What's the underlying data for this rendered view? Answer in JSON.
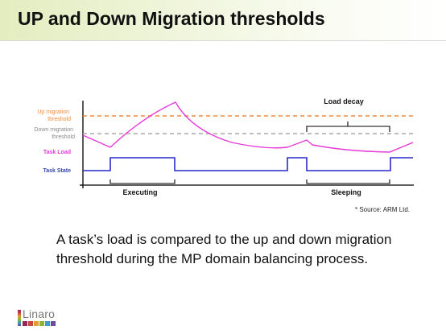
{
  "title": "UP and Down Migration thresholds",
  "diagram": {
    "labels": {
      "up_threshold": [
        "Up migration",
        "threshold"
      ],
      "down_threshold": [
        "Down migration",
        "threshold"
      ],
      "task_load": "Task Load",
      "task_state": "Task State",
      "load_decay": "Load decay",
      "executing": "Executing",
      "sleeping": "Sleeping"
    },
    "colors": {
      "up_threshold": "#f08a3c",
      "down_threshold": "#a8a8a8",
      "task_load": "#e83ad8",
      "task_state": "#2a2acb",
      "label_blue": "#3347a8"
    }
  },
  "source_note": "* Source: ARM Ltd.",
  "body_text": "A task’s load is compared to the up and down migration threshold during the MP domain balancing process.",
  "logo": {
    "word": "Linaro",
    "colors": [
      "#8e2b55",
      "#c8463e",
      "#e0a032",
      "#8fb43a",
      "#3d9ccf",
      "#6a4c9c"
    ]
  }
}
